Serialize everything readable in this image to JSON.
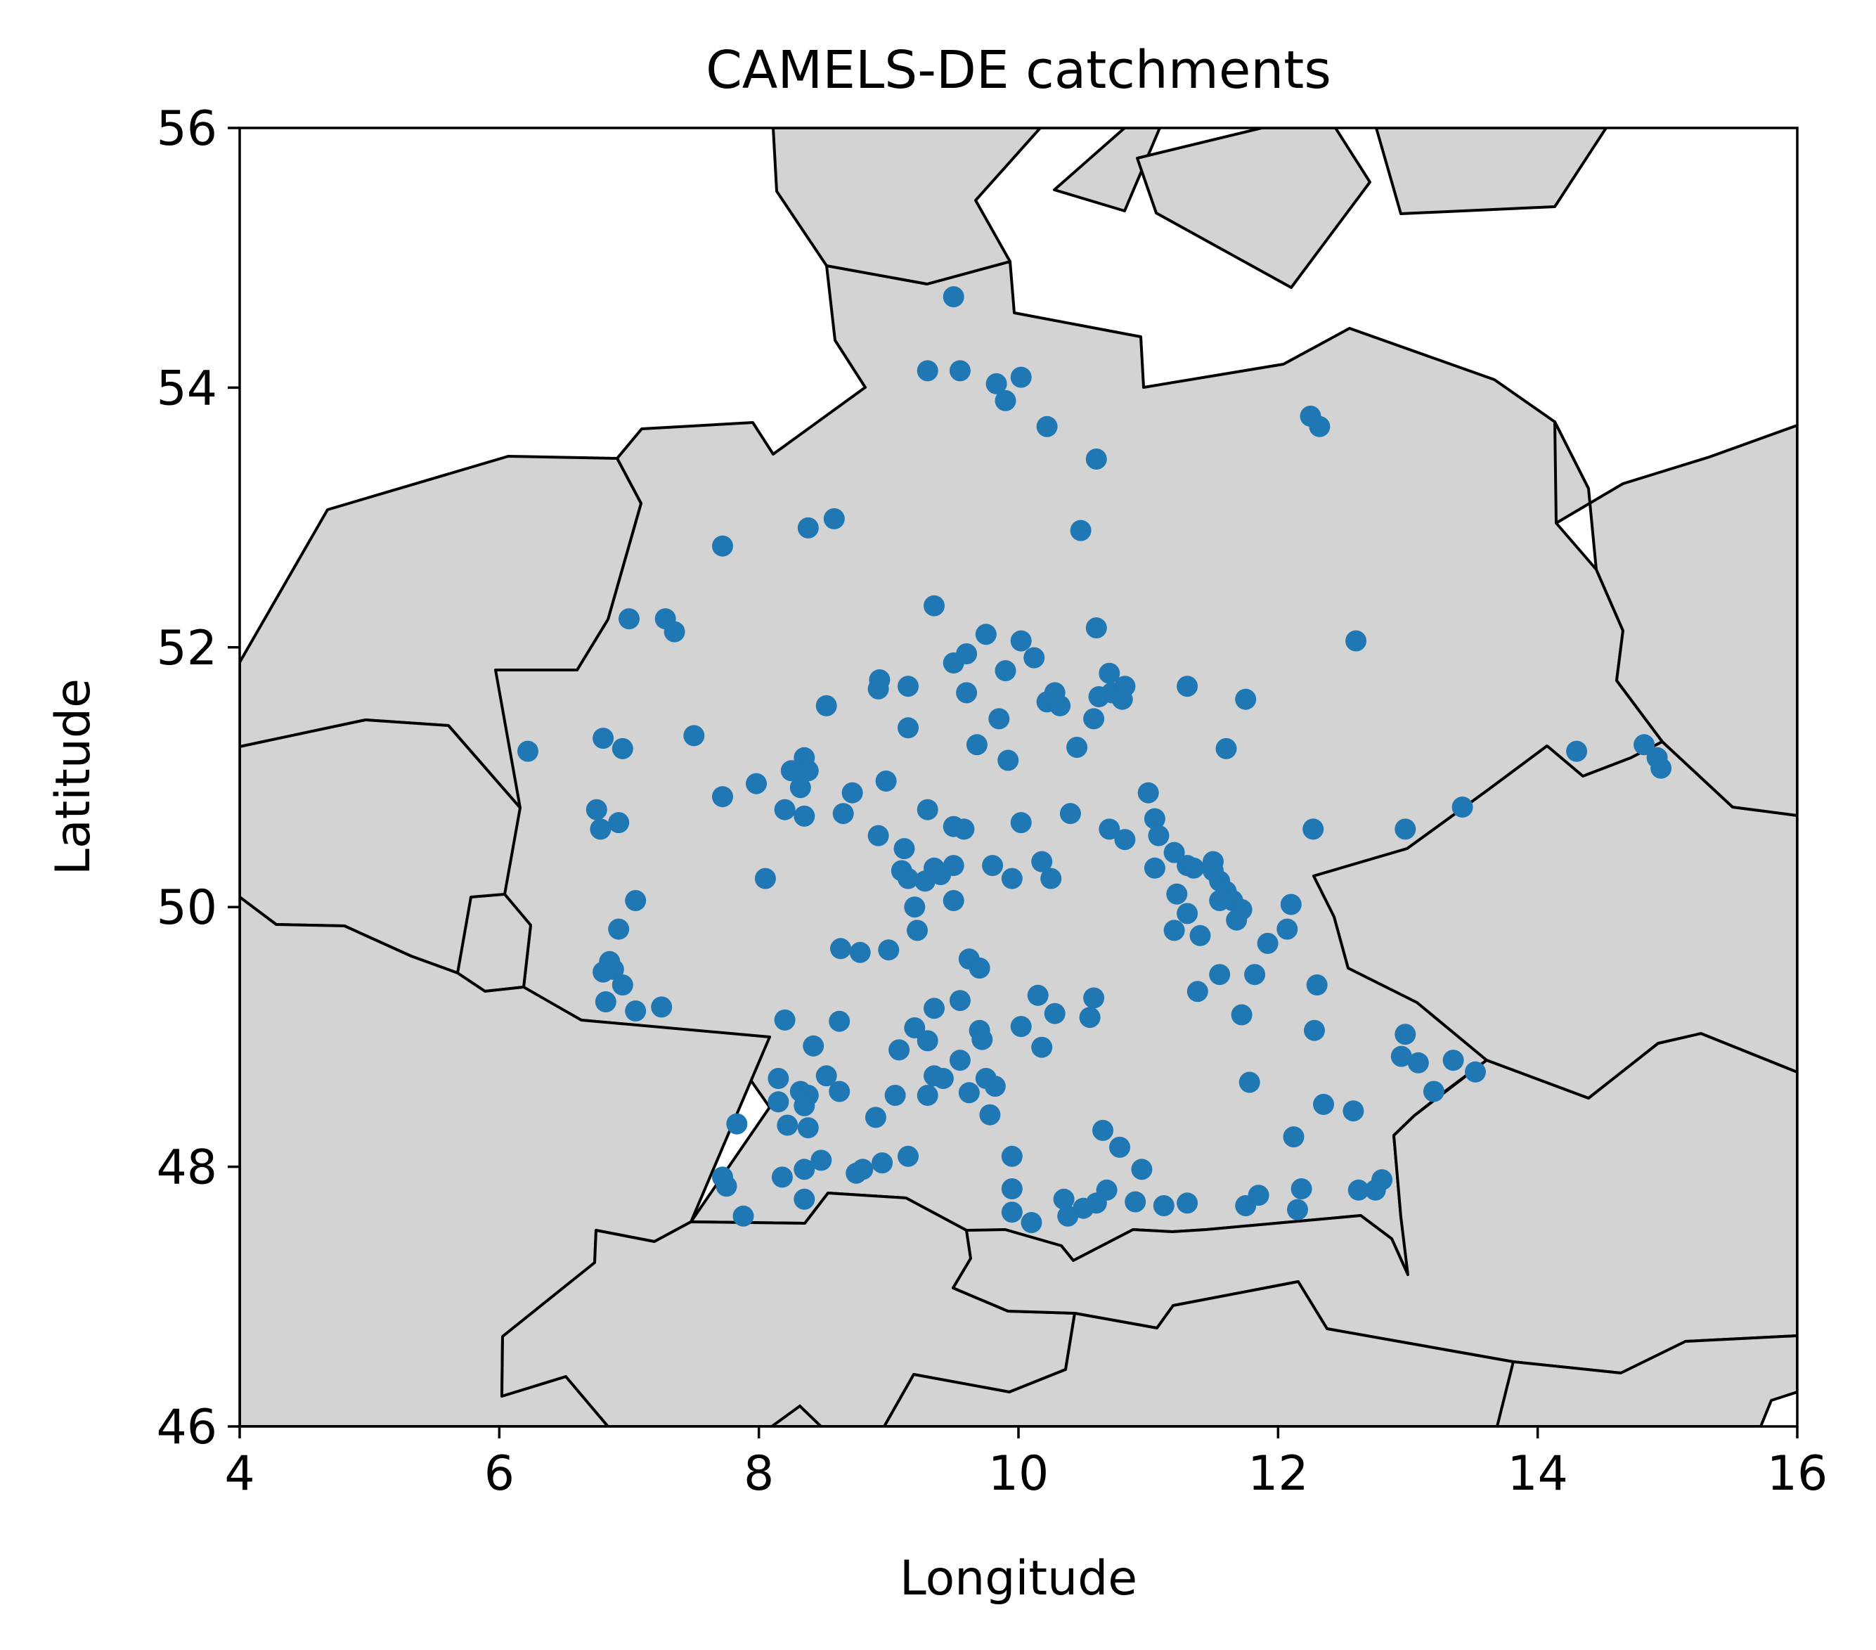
{
  "chart_data": {
    "type": "scatter",
    "title": "CAMELS-DE catchments",
    "xlabel": "Longitude",
    "ylabel": "Latitude",
    "xlim": [
      4,
      16
    ],
    "ylim": [
      46,
      56
    ],
    "xticks": [
      4,
      6,
      8,
      10,
      12,
      14,
      16
    ],
    "yticks": [
      46,
      48,
      50,
      52,
      54,
      56
    ],
    "grid": false,
    "legend": "none",
    "colors": {
      "points": "#1f77b4",
      "land": "#d3d3d3",
      "borders": "#000000"
    },
    "series": [
      {
        "points": [
          [
            9.5,
            54.7
          ],
          [
            9.3,
            54.13
          ],
          [
            9.55,
            54.13
          ],
          [
            9.83,
            54.03
          ],
          [
            10.02,
            54.08
          ],
          [
            9.9,
            53.9
          ],
          [
            10.22,
            53.7
          ],
          [
            10.6,
            53.45
          ],
          [
            12.25,
            53.78
          ],
          [
            12.32,
            53.7
          ],
          [
            8.38,
            52.92
          ],
          [
            8.58,
            52.99
          ],
          [
            10.48,
            52.9
          ],
          [
            7.72,
            52.78
          ],
          [
            7.0,
            52.22
          ],
          [
            7.28,
            52.22
          ],
          [
            7.35,
            52.12
          ],
          [
            9.35,
            52.32
          ],
          [
            10.6,
            52.15
          ],
          [
            12.6,
            52.05
          ],
          [
            10.02,
            52.05
          ],
          [
            9.75,
            52.1
          ],
          [
            9.5,
            51.88
          ],
          [
            9.6,
            51.95
          ],
          [
            9.9,
            51.82
          ],
          [
            10.12,
            51.92
          ],
          [
            8.93,
            51.75
          ],
          [
            8.92,
            51.68
          ],
          [
            9.15,
            51.7
          ],
          [
            9.6,
            51.65
          ],
          [
            10.28,
            51.65
          ],
          [
            10.22,
            51.58
          ],
          [
            10.32,
            51.55
          ],
          [
            10.62,
            51.62
          ],
          [
            10.7,
            51.8
          ],
          [
            10.72,
            51.65
          ],
          [
            10.82,
            51.7
          ],
          [
            10.8,
            51.6
          ],
          [
            11.3,
            51.7
          ],
          [
            11.75,
            51.6
          ],
          [
            8.52,
            51.55
          ],
          [
            9.15,
            51.38
          ],
          [
            9.85,
            51.45
          ],
          [
            10.58,
            51.45
          ],
          [
            7.5,
            51.32
          ],
          [
            6.8,
            51.3
          ],
          [
            6.95,
            51.22
          ],
          [
            6.22,
            51.2
          ],
          [
            9.68,
            51.25
          ],
          [
            9.92,
            51.13
          ],
          [
            10.45,
            51.23
          ],
          [
            11.6,
            51.22
          ],
          [
            14.3,
            51.2
          ],
          [
            14.82,
            51.25
          ],
          [
            14.92,
            51.15
          ],
          [
            14.95,
            51.07
          ],
          [
            8.35,
            51.15
          ],
          [
            8.38,
            51.05
          ],
          [
            8.25,
            51.05
          ],
          [
            8.32,
            50.92
          ],
          [
            7.98,
            50.95
          ],
          [
            8.98,
            50.97
          ],
          [
            7.72,
            50.85
          ],
          [
            8.72,
            50.88
          ],
          [
            11.0,
            50.88
          ],
          [
            13.42,
            50.77
          ],
          [
            6.75,
            50.75
          ],
          [
            6.78,
            50.6
          ],
          [
            6.92,
            50.65
          ],
          [
            8.2,
            50.75
          ],
          [
            8.35,
            50.7
          ],
          [
            8.65,
            50.72
          ],
          [
            9.3,
            50.75
          ],
          [
            10.02,
            50.65
          ],
          [
            10.4,
            50.72
          ],
          [
            11.05,
            50.68
          ],
          [
            12.27,
            50.6
          ],
          [
            12.98,
            50.6
          ],
          [
            8.92,
            50.55
          ],
          [
            9.5,
            50.62
          ],
          [
            9.58,
            50.6
          ],
          [
            10.7,
            50.6
          ],
          [
            11.08,
            50.55
          ],
          [
            10.82,
            50.52
          ],
          [
            9.12,
            50.45
          ],
          [
            11.2,
            50.42
          ],
          [
            10.18,
            50.35
          ],
          [
            11.05,
            50.3
          ],
          [
            9.5,
            50.32
          ],
          [
            9.8,
            50.32
          ],
          [
            9.1,
            50.28
          ],
          [
            9.35,
            50.3
          ],
          [
            9.4,
            50.25
          ],
          [
            9.28,
            50.2
          ],
          [
            11.3,
            50.32
          ],
          [
            11.35,
            50.3
          ],
          [
            11.5,
            50.35
          ],
          [
            11.5,
            50.28
          ],
          [
            11.55,
            50.2
          ],
          [
            11.6,
            50.12
          ],
          [
            9.15,
            50.22
          ],
          [
            8.05,
            50.22
          ],
          [
            9.95,
            50.22
          ],
          [
            10.25,
            50.22
          ],
          [
            11.22,
            50.1
          ],
          [
            11.55,
            50.05
          ],
          [
            11.65,
            50.05
          ],
          [
            11.72,
            49.98
          ],
          [
            11.68,
            49.9
          ],
          [
            12.1,
            50.02
          ],
          [
            9.5,
            50.05
          ],
          [
            7.05,
            50.05
          ],
          [
            9.2,
            50.0
          ],
          [
            11.3,
            49.95
          ],
          [
            9.22,
            49.82
          ],
          [
            6.92,
            49.83
          ],
          [
            11.4,
            49.78
          ],
          [
            12.07,
            49.83
          ],
          [
            11.2,
            49.82
          ],
          [
            11.92,
            49.72
          ],
          [
            8.63,
            49.68
          ],
          [
            8.78,
            49.65
          ],
          [
            9.0,
            49.67
          ],
          [
            9.62,
            49.6
          ],
          [
            9.7,
            49.53
          ],
          [
            6.85,
            49.58
          ],
          [
            6.88,
            49.52
          ],
          [
            6.8,
            49.5
          ],
          [
            6.95,
            49.4
          ],
          [
            11.55,
            49.48
          ],
          [
            11.82,
            49.48
          ],
          [
            12.3,
            49.4
          ],
          [
            11.38,
            49.35
          ],
          [
            10.15,
            49.32
          ],
          [
            10.58,
            49.3
          ],
          [
            9.55,
            49.28
          ],
          [
            9.35,
            49.22
          ],
          [
            6.82,
            49.27
          ],
          [
            7.05,
            49.2
          ],
          [
            7.25,
            49.23
          ],
          [
            10.28,
            49.18
          ],
          [
            10.55,
            49.15
          ],
          [
            11.72,
            49.17
          ],
          [
            8.2,
            49.13
          ],
          [
            8.62,
            49.12
          ],
          [
            9.2,
            49.07
          ],
          [
            9.7,
            49.05
          ],
          [
            10.02,
            49.08
          ],
          [
            12.28,
            49.05
          ],
          [
            12.98,
            49.02
          ],
          [
            9.3,
            48.97
          ],
          [
            9.72,
            48.98
          ],
          [
            10.18,
            48.92
          ],
          [
            9.08,
            48.9
          ],
          [
            8.42,
            48.93
          ],
          [
            12.95,
            48.85
          ],
          [
            13.08,
            48.8
          ],
          [
            13.35,
            48.82
          ],
          [
            13.52,
            48.73
          ],
          [
            9.55,
            48.82
          ],
          [
            8.52,
            48.7
          ],
          [
            8.15,
            48.68
          ],
          [
            9.35,
            48.7
          ],
          [
            9.42,
            48.68
          ],
          [
            9.75,
            48.68
          ],
          [
            9.82,
            48.62
          ],
          [
            11.78,
            48.65
          ],
          [
            13.2,
            48.58
          ],
          [
            8.32,
            48.58
          ],
          [
            8.38,
            48.55
          ],
          [
            8.62,
            48.58
          ],
          [
            9.62,
            48.57
          ],
          [
            9.3,
            48.55
          ],
          [
            9.05,
            48.55
          ],
          [
            8.15,
            48.5
          ],
          [
            8.35,
            48.47
          ],
          [
            12.35,
            48.48
          ],
          [
            12.58,
            48.43
          ],
          [
            7.83,
            48.33
          ],
          [
            8.22,
            48.32
          ],
          [
            8.38,
            48.3
          ],
          [
            8.9,
            48.38
          ],
          [
            9.78,
            48.4
          ],
          [
            10.65,
            48.28
          ],
          [
            10.78,
            48.15
          ],
          [
            12.12,
            48.23
          ],
          [
            9.95,
            48.08
          ],
          [
            9.15,
            48.08
          ],
          [
            8.48,
            48.05
          ],
          [
            8.95,
            48.03
          ],
          [
            8.35,
            47.98
          ],
          [
            8.75,
            47.95
          ],
          [
            8.8,
            47.98
          ],
          [
            10.95,
            47.98
          ],
          [
            7.72,
            47.92
          ],
          [
            8.18,
            47.92
          ],
          [
            7.75,
            47.85
          ],
          [
            9.95,
            47.83
          ],
          [
            10.35,
            47.75
          ],
          [
            10.5,
            47.68
          ],
          [
            10.6,
            47.72
          ],
          [
            10.68,
            47.82
          ],
          [
            10.9,
            47.73
          ],
          [
            11.12,
            47.7
          ],
          [
            11.3,
            47.72
          ],
          [
            11.75,
            47.7
          ],
          [
            11.85,
            47.78
          ],
          [
            12.18,
            47.83
          ],
          [
            12.15,
            47.67
          ],
          [
            12.62,
            47.82
          ],
          [
            12.75,
            47.82
          ],
          [
            12.8,
            47.9
          ],
          [
            7.88,
            47.62
          ],
          [
            8.35,
            47.75
          ],
          [
            9.95,
            47.65
          ],
          [
            10.1,
            47.57
          ],
          [
            10.38,
            47.62
          ]
        ]
      }
    ]
  }
}
